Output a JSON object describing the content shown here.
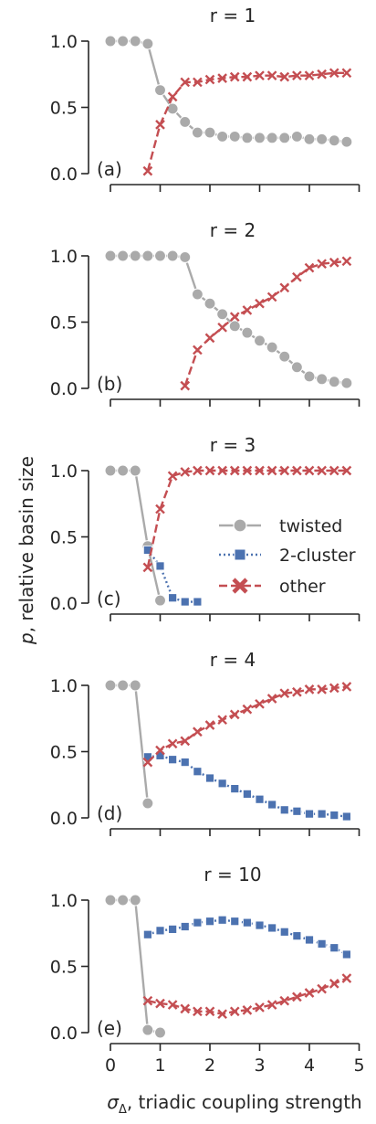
{
  "figure": {
    "ylabel_italic": "p",
    "ylabel_rest": ", relative basin size",
    "xlabel_sym": "σ",
    "xlabel_sub": "Δ",
    "xlabel_rest": ", triadic coupling strength",
    "legend_entries": [
      "twisted",
      "2-cluster",
      "other"
    ]
  },
  "colors": {
    "twisted": "#aaaaaa",
    "cluster": "#4c72b0",
    "other": "#c44e52",
    "axis": "#262626"
  },
  "chart_data": [
    {
      "type": "line",
      "title": "r = 1",
      "tag": "(a)",
      "ylim": [
        0,
        1
      ],
      "yticks": [
        "0.0",
        "0.5",
        "1.0"
      ],
      "xlim": [
        0,
        5
      ],
      "xticks": [],
      "series": [
        {
          "name": "twisted",
          "x": [
            0,
            0.25,
            0.5,
            0.75,
            1,
            1.25,
            1.5,
            1.75,
            2,
            2.25,
            2.5,
            2.75,
            3,
            3.25,
            3.5,
            3.75,
            4,
            4.25,
            4.5,
            4.75
          ],
          "values": [
            1.0,
            1.0,
            1.0,
            0.98,
            0.63,
            0.49,
            0.39,
            0.31,
            0.31,
            0.28,
            0.28,
            0.27,
            0.27,
            0.27,
            0.27,
            0.28,
            0.26,
            0.26,
            0.25,
            0.24
          ]
        },
        {
          "name": "other",
          "x": [
            0.75,
            1,
            1.25,
            1.5,
            1.75,
            2,
            2.25,
            2.5,
            2.75,
            3,
            3.25,
            3.5,
            3.75,
            4,
            4.25,
            4.5,
            4.75
          ],
          "values": [
            0.02,
            0.37,
            0.58,
            0.69,
            0.69,
            0.71,
            0.72,
            0.73,
            0.73,
            0.74,
            0.74,
            0.73,
            0.74,
            0.74,
            0.75,
            0.76,
            0.76
          ]
        }
      ]
    },
    {
      "type": "line",
      "title": "r = 2",
      "tag": "(b)",
      "ylim": [
        0,
        1
      ],
      "yticks": [
        "0.0",
        "0.5",
        "1.0"
      ],
      "xlim": [
        0,
        5
      ],
      "xticks": [],
      "series": [
        {
          "name": "twisted",
          "x": [
            0,
            0.25,
            0.5,
            0.75,
            1,
            1.25,
            1.5,
            1.75,
            2,
            2.25,
            2.5,
            2.75,
            3,
            3.25,
            3.5,
            3.75,
            4,
            4.25,
            4.5,
            4.75
          ],
          "values": [
            1.0,
            1.0,
            1.0,
            1.0,
            1.0,
            1.0,
            0.99,
            0.71,
            0.64,
            0.56,
            0.47,
            0.42,
            0.36,
            0.31,
            0.24,
            0.16,
            0.09,
            0.07,
            0.05,
            0.04
          ]
        },
        {
          "name": "other",
          "x": [
            1.5,
            1.75,
            2,
            2.25,
            2.5,
            2.75,
            3,
            3.25,
            3.5,
            3.75,
            4,
            4.25,
            4.5,
            4.75
          ],
          "values": [
            0.02,
            0.29,
            0.38,
            0.46,
            0.54,
            0.59,
            0.64,
            0.69,
            0.76,
            0.84,
            0.91,
            0.94,
            0.95,
            0.96
          ]
        }
      ]
    },
    {
      "type": "line",
      "title": "r = 3",
      "tag": "(c)",
      "ylim": [
        0,
        1
      ],
      "yticks": [
        "0.0",
        "0.5",
        "1.0"
      ],
      "xlim": [
        0,
        5
      ],
      "xticks": [],
      "series": [
        {
          "name": "twisted",
          "x": [
            0,
            0.25,
            0.5,
            0.75,
            1
          ],
          "values": [
            1.0,
            1.0,
            1.0,
            0.43,
            0.02
          ]
        },
        {
          "name": "2-cluster",
          "x": [
            0.75,
            1,
            1.25,
            1.5,
            1.75
          ],
          "values": [
            0.4,
            0.28,
            0.04,
            0.01,
            0.01
          ]
        },
        {
          "name": "other",
          "x": [
            0.75,
            1,
            1.25,
            1.5,
            1.75,
            2,
            2.25,
            2.5,
            2.75,
            3,
            3.25,
            3.5,
            3.75,
            4,
            4.25,
            4.5,
            4.75
          ],
          "values": [
            0.27,
            0.71,
            0.96,
            0.99,
            1.0,
            1.0,
            1.0,
            1.0,
            1.0,
            1.0,
            1.0,
            1.0,
            1.0,
            1.0,
            1.0,
            1.0,
            1.0
          ]
        }
      ]
    },
    {
      "type": "line",
      "title": "r = 4",
      "tag": "(d)",
      "ylim": [
        0,
        1
      ],
      "yticks": [
        "0.0",
        "0.5",
        "1.0"
      ],
      "xlim": [
        0,
        5
      ],
      "xticks": [],
      "series": [
        {
          "name": "twisted",
          "x": [
            0,
            0.25,
            0.5,
            0.75
          ],
          "values": [
            1.0,
            1.0,
            1.0,
            0.11
          ]
        },
        {
          "name": "2-cluster",
          "x": [
            0.75,
            1,
            1.25,
            1.5,
            1.75,
            2,
            2.25,
            2.5,
            2.75,
            3,
            3.25,
            3.5,
            3.75,
            4,
            4.25,
            4.5,
            4.75
          ],
          "values": [
            0.46,
            0.47,
            0.44,
            0.42,
            0.35,
            0.3,
            0.26,
            0.22,
            0.18,
            0.14,
            0.1,
            0.06,
            0.05,
            0.03,
            0.03,
            0.02,
            0.01
          ]
        },
        {
          "name": "other",
          "x": [
            0.75,
            1,
            1.25,
            1.5,
            1.75,
            2,
            2.25,
            2.5,
            2.75,
            3,
            3.25,
            3.5,
            3.75,
            4,
            4.25,
            4.5,
            4.75
          ],
          "values": [
            0.42,
            0.51,
            0.56,
            0.58,
            0.65,
            0.7,
            0.74,
            0.78,
            0.82,
            0.86,
            0.9,
            0.94,
            0.95,
            0.97,
            0.97,
            0.98,
            0.99
          ]
        }
      ]
    },
    {
      "type": "line",
      "title": "r = 10",
      "tag": "(e)",
      "ylim": [
        0,
        1
      ],
      "yticks": [
        "0.0",
        "0.5",
        "1.0"
      ],
      "xlim": [
        0,
        5
      ],
      "xticks": [
        "0",
        "1",
        "2",
        "3",
        "4",
        "5"
      ],
      "series": [
        {
          "name": "twisted",
          "x": [
            0,
            0.25,
            0.5,
            0.75,
            1
          ],
          "values": [
            1.0,
            1.0,
            1.0,
            0.02,
            0.0
          ]
        },
        {
          "name": "2-cluster",
          "x": [
            0.75,
            1,
            1.25,
            1.5,
            1.75,
            2,
            2.25,
            2.5,
            2.75,
            3,
            3.25,
            3.5,
            3.75,
            4,
            4.25,
            4.5,
            4.75
          ],
          "values": [
            0.74,
            0.77,
            0.78,
            0.8,
            0.83,
            0.84,
            0.85,
            0.84,
            0.83,
            0.81,
            0.79,
            0.76,
            0.73,
            0.7,
            0.67,
            0.64,
            0.59
          ]
        },
        {
          "name": "other",
          "x": [
            0.75,
            1,
            1.25,
            1.5,
            1.75,
            2,
            2.25,
            2.5,
            2.75,
            3,
            3.25,
            3.5,
            3.75,
            4,
            4.25,
            4.5,
            4.75
          ],
          "values": [
            0.24,
            0.22,
            0.21,
            0.18,
            0.16,
            0.16,
            0.14,
            0.16,
            0.17,
            0.19,
            0.21,
            0.24,
            0.27,
            0.3,
            0.33,
            0.37,
            0.41
          ]
        }
      ]
    }
  ]
}
